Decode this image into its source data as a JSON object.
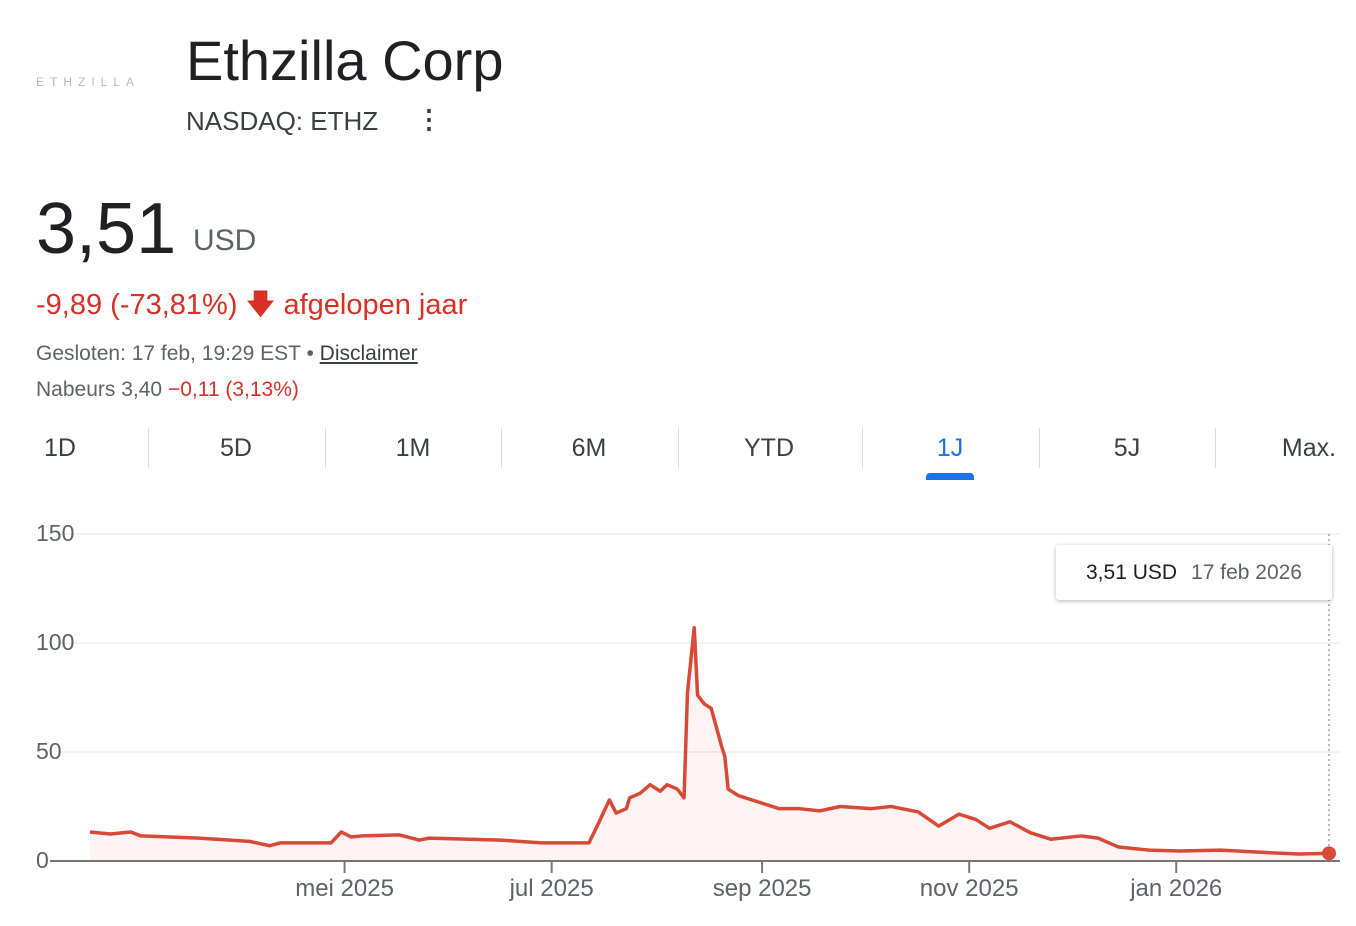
{
  "header": {
    "logo_text": "ETHZILLA",
    "title": "Ethzilla Corp",
    "ticker": "NASDAQ: ETHZ",
    "more_icon": "more-vert-icon"
  },
  "quote": {
    "price": "3,51",
    "currency": "USD",
    "change": "-9,89 (-73,81%)",
    "change_period": "afgelopen jaar",
    "closed": "Gesloten: 17 feb, 19:29 EST",
    "separator": "•",
    "disclaimer": "Disclaimer",
    "afterhours_label": "Nabeurs 3,40",
    "afterhours_change": "−0,11 (3,13%)",
    "color_negative": "#d93025"
  },
  "tabs": [
    {
      "label": "1D"
    },
    {
      "label": "5D"
    },
    {
      "label": "1M"
    },
    {
      "label": "6M"
    },
    {
      "label": "YTD"
    },
    {
      "label": "1J",
      "active": true
    },
    {
      "label": "5J"
    },
    {
      "label": "Max."
    }
  ],
  "tooltip": {
    "value": "3,51 USD",
    "date": "17 feb 2026"
  },
  "chart_data": {
    "type": "line",
    "x_unit": "days since 15 feb 2025",
    "xlim": [
      0,
      365
    ],
    "ylim": [
      0,
      150
    ],
    "yticks": [
      "0",
      "50",
      "100",
      "150"
    ],
    "ytick_values": [
      0,
      50,
      100,
      150
    ],
    "xticks": [
      {
        "label": "mei 2025",
        "day": 75
      },
      {
        "label": "jul 2025",
        "day": 136
      },
      {
        "label": "sep 2025",
        "day": 198
      },
      {
        "label": "nov 2025",
        "day": 259
      },
      {
        "label": "jan 2026",
        "day": 320
      }
    ],
    "line_color": "#d84a38",
    "points": [
      [
        0,
        13.3
      ],
      [
        6,
        12.4
      ],
      [
        12,
        13.3
      ],
      [
        15,
        11.5
      ],
      [
        32,
        10.5
      ],
      [
        47,
        9
      ],
      [
        53,
        7
      ],
      [
        56,
        8.3
      ],
      [
        62,
        8.3
      ],
      [
        71,
        8.3
      ],
      [
        74,
        13.3
      ],
      [
        77,
        11
      ],
      [
        80,
        11.5
      ],
      [
        91,
        12
      ],
      [
        97,
        9.6
      ],
      [
        100,
        10.5
      ],
      [
        121,
        9.6
      ],
      [
        133,
        8.3
      ],
      [
        147,
        8.3
      ],
      [
        150,
        18
      ],
      [
        153,
        28
      ],
      [
        155,
        22
      ],
      [
        158,
        24
      ],
      [
        159,
        29
      ],
      [
        162,
        31
      ],
      [
        165,
        35
      ],
      [
        168,
        32
      ],
      [
        170,
        35
      ],
      [
        173,
        33
      ],
      [
        175,
        29
      ],
      [
        176,
        77
      ],
      [
        178,
        107
      ],
      [
        179,
        76
      ],
      [
        181,
        72
      ],
      [
        183,
        70
      ],
      [
        186,
        53
      ],
      [
        187,
        48
      ],
      [
        188,
        33
      ],
      [
        191,
        30
      ],
      [
        197,
        27
      ],
      [
        203,
        24
      ],
      [
        209,
        24
      ],
      [
        215,
        23
      ],
      [
        221,
        25
      ],
      [
        230,
        24
      ],
      [
        236,
        25
      ],
      [
        244,
        22.5
      ],
      [
        250,
        16
      ],
      [
        256,
        21.5
      ],
      [
        261,
        19
      ],
      [
        265,
        15
      ],
      [
        271,
        18
      ],
      [
        277,
        13
      ],
      [
        283,
        10
      ],
      [
        292,
        11.5
      ],
      [
        297,
        10.5
      ],
      [
        303,
        6.4
      ],
      [
        312,
        5
      ],
      [
        321,
        4.6
      ],
      [
        333,
        5
      ],
      [
        345,
        4
      ],
      [
        356,
        3.2
      ],
      [
        365,
        3.51
      ]
    ]
  }
}
